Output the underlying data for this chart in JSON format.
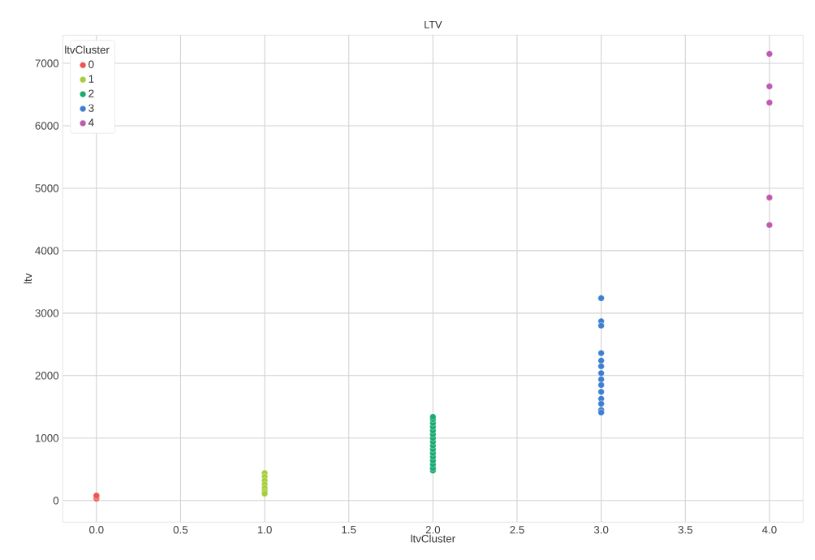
{
  "chart_data": {
    "type": "scatter",
    "title": "LTV",
    "xlabel": "ltvCluster",
    "ylabel": "ltv",
    "legend_title": "ltvCluster",
    "xlim": [
      -0.2,
      4.2
    ],
    "ylim": [
      -345,
      7450
    ],
    "xticks": [
      {
        "value": 0,
        "label": "0.0"
      },
      {
        "value": 0.5,
        "label": "0.5"
      },
      {
        "value": 1,
        "label": "1.0"
      },
      {
        "value": 1.5,
        "label": "1.5"
      },
      {
        "value": 2,
        "label": "2.0"
      },
      {
        "value": 2.5,
        "label": "2.5"
      },
      {
        "value": 3,
        "label": "3.0"
      },
      {
        "value": 3.5,
        "label": "3.5"
      },
      {
        "value": 4,
        "label": "4.0"
      }
    ],
    "yticks": [
      0,
      1000,
      2000,
      3000,
      4000,
      5000,
      6000,
      7000
    ],
    "grid": true,
    "legend": "top left",
    "marker": "circle",
    "series": [
      {
        "name": "0",
        "color": "#f0524d",
        "x": [
          0,
          0,
          0
        ],
        "values": [
          30,
          60,
          80
        ]
      },
      {
        "name": "1",
        "color": "#a6cd3a",
        "x": [
          1,
          1,
          1,
          1,
          1,
          1,
          1
        ],
        "values": [
          440,
          380,
          320,
          260,
          200,
          150,
          110
        ]
      },
      {
        "name": "2",
        "color": "#1aaa72",
        "x": [
          2,
          2,
          2,
          2,
          2,
          2,
          2,
          2,
          2,
          2,
          2,
          2,
          2,
          2,
          2,
          2
        ],
        "values": [
          480,
          520,
          580,
          640,
          700,
          760,
          820,
          880,
          940,
          1000,
          1060,
          1120,
          1180,
          1240,
          1300,
          1340
        ]
      },
      {
        "name": "3",
        "color": "#3f7fd0",
        "x": [
          3,
          3,
          3,
          3,
          3,
          3,
          3,
          3,
          3,
          3,
          3,
          3,
          3,
          3
        ],
        "values": [
          3240,
          2870,
          2800,
          2360,
          2240,
          2150,
          2040,
          1940,
          1850,
          1740,
          1630,
          1550,
          1450,
          1410
        ]
      },
      {
        "name": "4",
        "color": "#c05aaf",
        "x": [
          4,
          4,
          4,
          4,
          4
        ],
        "values": [
          7150,
          6630,
          6370,
          4850,
          4410
        ]
      }
    ]
  }
}
